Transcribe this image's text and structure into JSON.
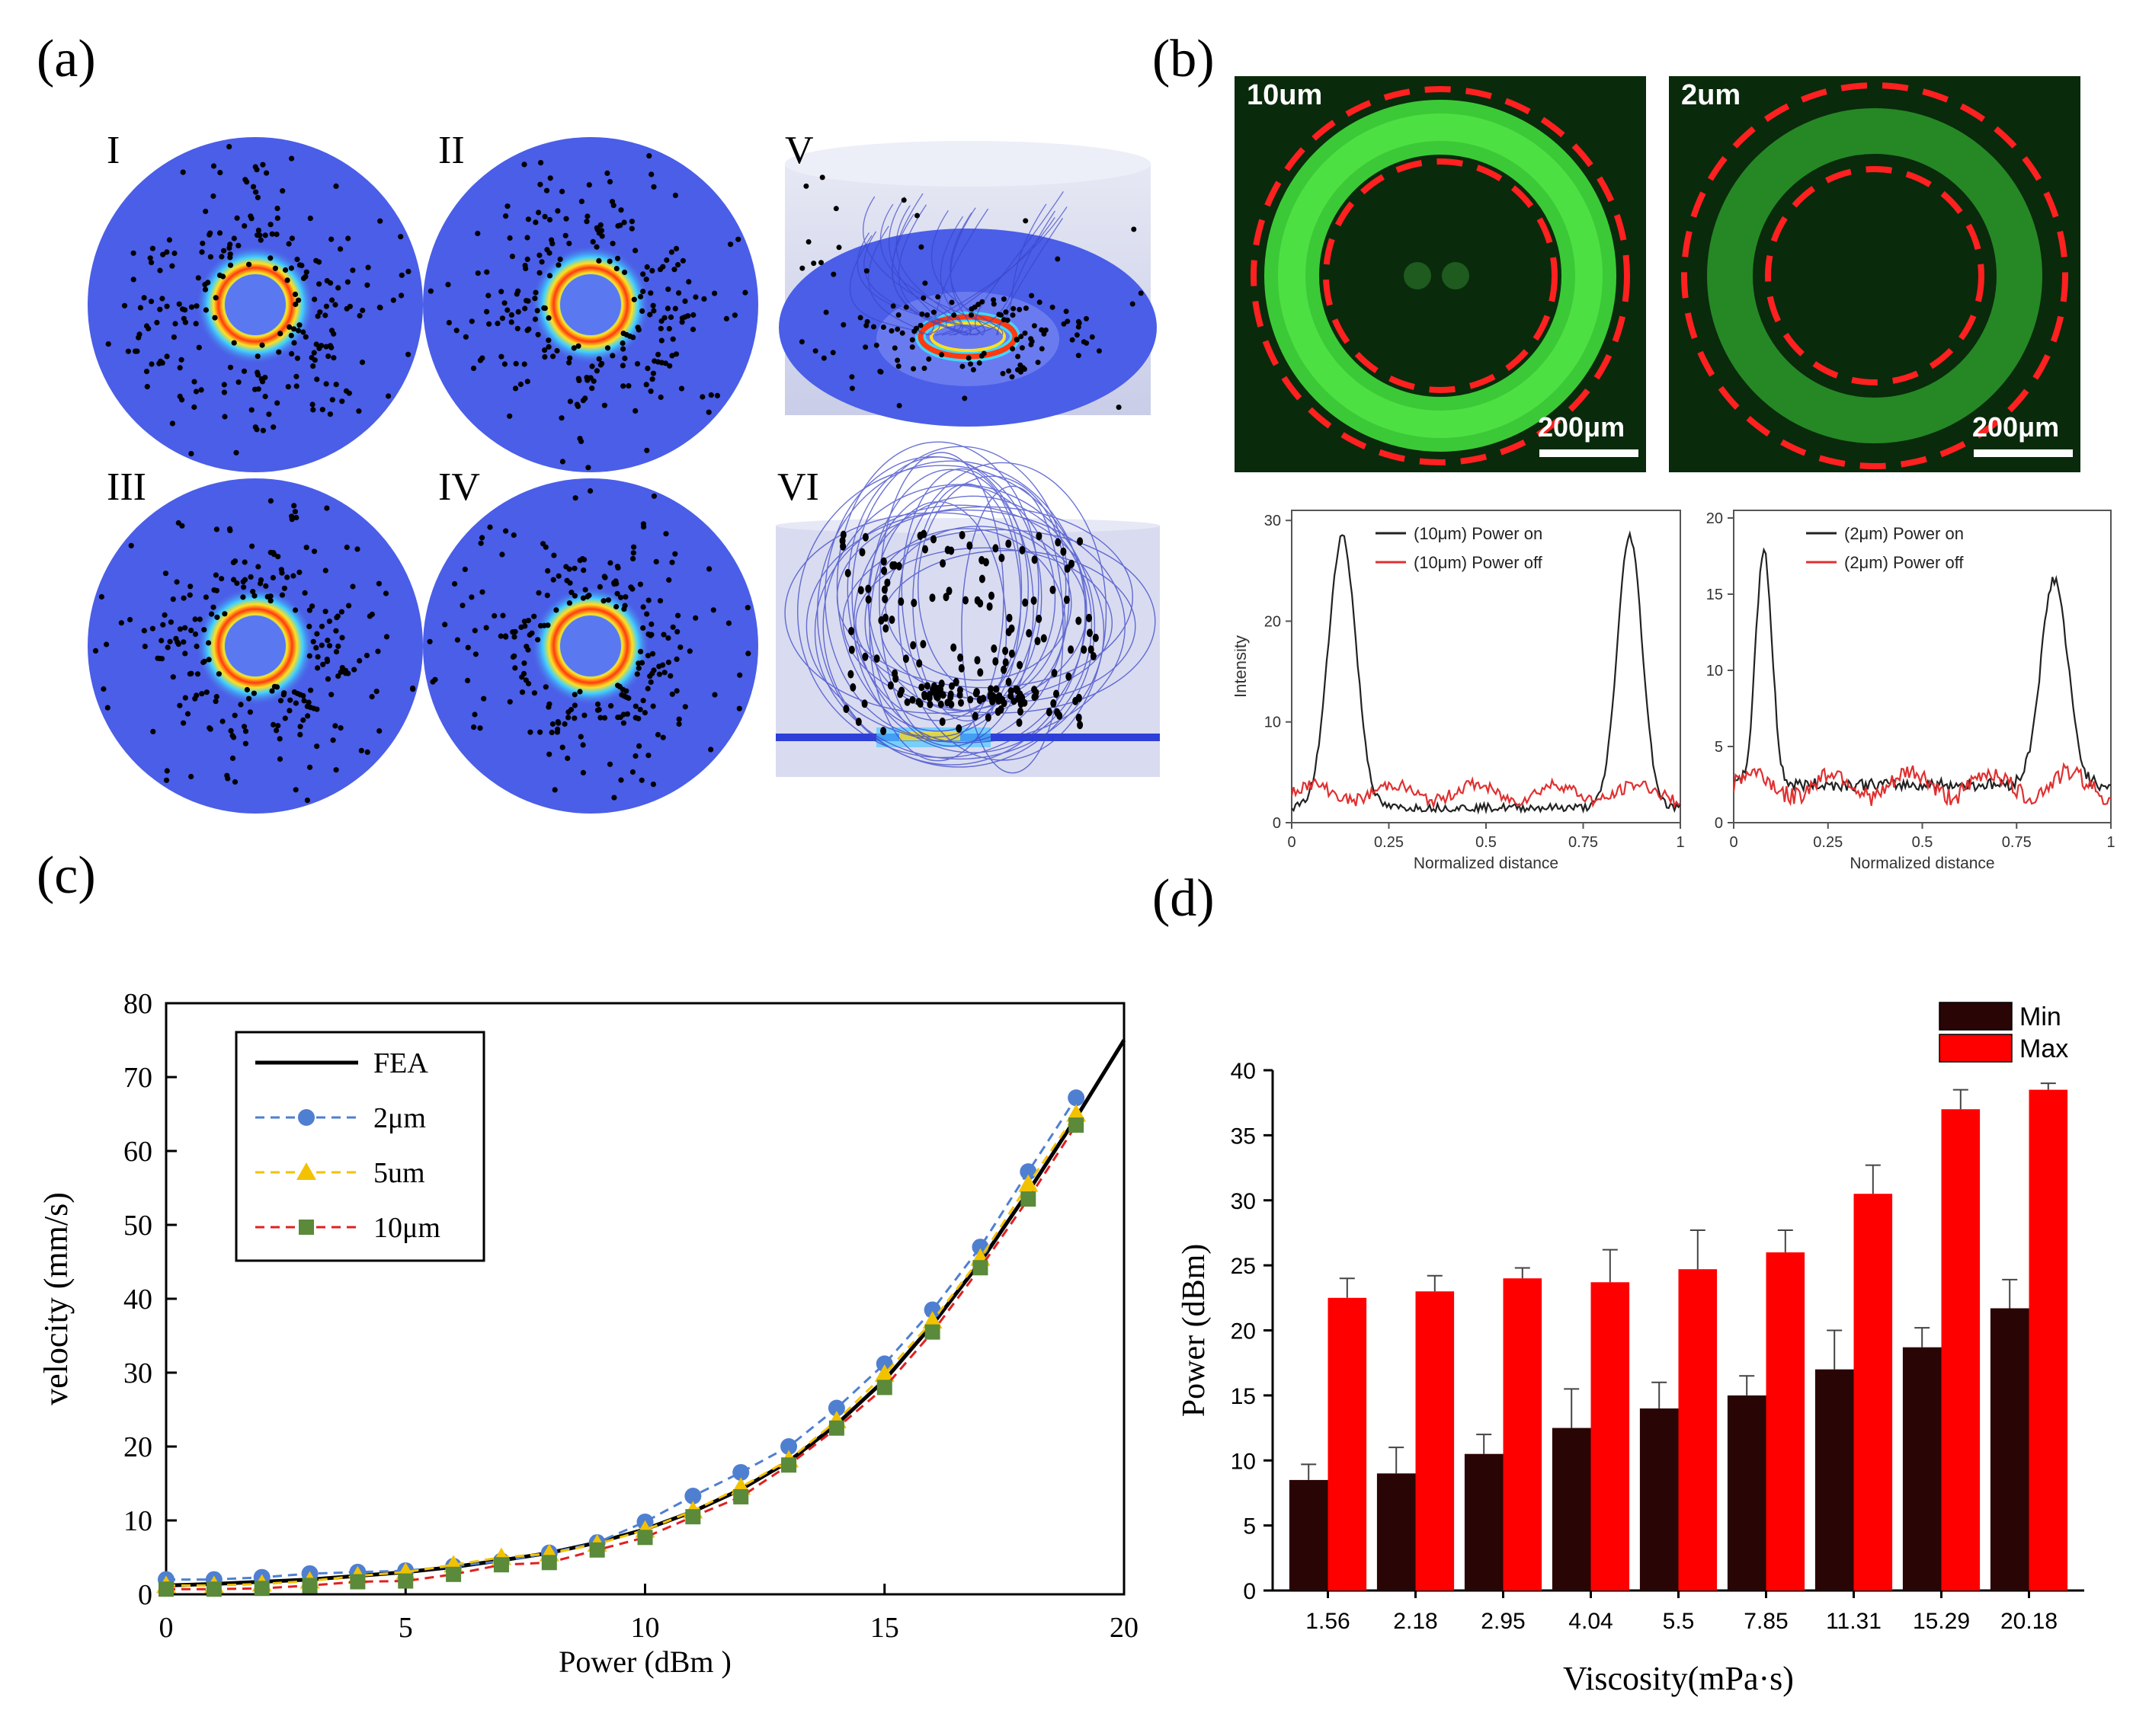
{
  "panel_labels": {
    "a": "(a)",
    "b": "(b)",
    "c": "(c)",
    "d": "(d)"
  },
  "panel_a": {
    "roman_labels": [
      "I",
      "II",
      "V",
      "III",
      "IV",
      "VI"
    ]
  },
  "panel_b": {
    "images": [
      {
        "label": "10um",
        "scale_bar": "200μm"
      },
      {
        "label": "2um",
        "scale_bar": "200μm"
      }
    ],
    "profile_left": {
      "legend": [
        "(10μm) Power on",
        "(10μm) Power off"
      ],
      "ylabel": "Intensity",
      "xlabel": "Normalized distance",
      "xticks": [
        "0",
        "0.25",
        "0.5",
        "0.75",
        "1"
      ],
      "yticks": [
        "0",
        "10",
        "20",
        "30"
      ]
    },
    "profile_right": {
      "legend": [
        "(2μm) Power on",
        "(2μm) Power off"
      ],
      "xlabel": "Normalized distance",
      "xticks": [
        "0",
        "0.25",
        "0.5",
        "0.75",
        "1"
      ],
      "yticks": [
        "0",
        "5",
        "10",
        "15",
        "20"
      ]
    },
    "colors": {
      "on": "#222222",
      "off": "#e03030"
    }
  },
  "chart_data": [
    {
      "type": "line",
      "panel": "c",
      "xlabel": "Power (dBm )",
      "ylabel": "velocity (mm/s)",
      "xlim": [
        0,
        20
      ],
      "ylim": [
        0,
        80
      ],
      "xticks": [
        "0",
        "5",
        "10",
        "15",
        "20"
      ],
      "yticks": [
        "0",
        "10",
        "20",
        "30",
        "40",
        "50",
        "60",
        "70",
        "80"
      ],
      "legend_position": "top-left",
      "series": [
        {
          "name": "FEA",
          "color": "#000000",
          "style": "solid",
          "x": [
            0,
            1,
            2,
            3,
            4,
            5,
            6,
            7,
            8,
            9,
            10,
            11,
            12,
            13,
            14,
            15,
            16,
            17,
            18,
            19,
            20
          ],
          "y": [
            1.2,
            1.4,
            1.7,
            2.0,
            2.5,
            3.0,
            3.7,
            4.6,
            5.6,
            7.0,
            8.8,
            11.2,
            14.2,
            18.0,
            23.0,
            29.0,
            36.5,
            45.0,
            54.5,
            64.5,
            75.0
          ]
        },
        {
          "name": "2μm",
          "color": "#4f7fd0",
          "style": "dashed",
          "marker": "circle",
          "x": [
            0,
            1,
            2,
            3,
            4,
            5,
            6,
            7,
            8,
            9,
            10,
            11,
            12,
            13,
            14,
            15,
            16,
            17,
            18,
            19
          ],
          "y": [
            2.0,
            2.0,
            2.3,
            2.8,
            3.0,
            3.2,
            3.8,
            4.5,
            5.6,
            7.0,
            9.8,
            13.3,
            16.5,
            20.0,
            25.2,
            31.2,
            38.5,
            47.0,
            57.2,
            67.2
          ]
        },
        {
          "name": "5um",
          "color": "#f2c200",
          "style": "dashed",
          "marker": "triangle",
          "x": [
            0,
            1,
            2,
            3,
            4,
            5,
            6,
            7,
            8,
            9,
            10,
            11,
            12,
            13,
            14,
            15,
            16,
            17,
            18,
            19
          ],
          "y": [
            1.2,
            1.2,
            1.4,
            1.8,
            2.5,
            3.0,
            4.0,
            5.0,
            5.5,
            6.8,
            8.7,
            11.3,
            14.5,
            18.2,
            23.5,
            29.8,
            37.0,
            45.5,
            55.5,
            65.0
          ]
        },
        {
          "name": "10μm",
          "color": "#e02020",
          "style": "dashed",
          "marker": "square",
          "marker_color": "#5a8a3a",
          "x": [
            0,
            1,
            2,
            3,
            4,
            5,
            6,
            7,
            8,
            9,
            10,
            11,
            12,
            13,
            14,
            15,
            16,
            17,
            18,
            19
          ],
          "y": [
            0.7,
            0.7,
            0.8,
            1.2,
            1.7,
            1.8,
            2.7,
            4.0,
            4.3,
            6.0,
            7.7,
            10.5,
            13.2,
            17.5,
            22.5,
            28.0,
            35.5,
            44.2,
            53.5,
            63.5
          ]
        }
      ]
    },
    {
      "type": "bar",
      "panel": "d",
      "xlabel": "Viscosity(mPa·s)",
      "ylabel": "Power (dBm)",
      "ylim": [
        0,
        40
      ],
      "yticks": [
        "0",
        "5",
        "10",
        "15",
        "20",
        "25",
        "30",
        "35",
        "40"
      ],
      "legend_position": "top-right",
      "categories": [
        "1.56",
        "2.18",
        "2.95",
        "4.04",
        "5.5",
        "7.85",
        "11.31",
        "15.29",
        "20.18"
      ],
      "series": [
        {
          "name": "Min",
          "color": "#2a0505",
          "values": [
            8.5,
            9.0,
            10.5,
            12.5,
            14.0,
            15.0,
            17.0,
            18.7,
            21.7
          ],
          "errors": [
            1.2,
            2.0,
            1.5,
            3.0,
            2.0,
            1.5,
            3.0,
            1.5,
            2.2
          ]
        },
        {
          "name": "Max",
          "color": "#ff0000",
          "values": [
            22.5,
            23.0,
            24.0,
            23.7,
            24.7,
            26.0,
            30.5,
            37.0,
            38.5
          ],
          "errors": [
            1.5,
            1.2,
            0.8,
            2.5,
            3.0,
            1.7,
            2.2,
            1.5,
            0.5
          ]
        }
      ]
    }
  ]
}
